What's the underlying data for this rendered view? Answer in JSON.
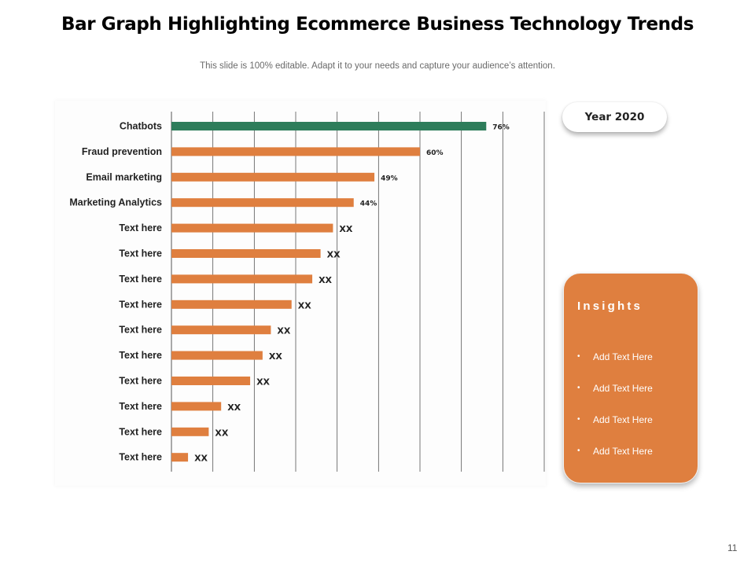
{
  "slide": {
    "title": "Bar Graph Highlighting Ecommerce Business Technology Trends",
    "subtitle": "This slide is 100% editable. Adapt it to your needs and capture your audience’s attention.",
    "page_number": "11"
  },
  "year_label": "Year 2020",
  "insights": {
    "title": "Insights",
    "items": [
      "Add Text Here",
      "Add Text Here",
      "Add Text Here",
      "Add Text Here"
    ]
  },
  "colors": {
    "highlight": "#2e7d5b",
    "bar": "#df7f3f",
    "grid": "#555555"
  },
  "chart_data": {
    "type": "bar",
    "orientation": "horizontal",
    "title": "",
    "xlabel": "",
    "ylabel": "",
    "xlim": [
      0,
      90
    ],
    "grid": true,
    "categories": [
      "Chatbots",
      "Fraud prevention",
      "Email marketing",
      "Marketing Analytics",
      "Text here",
      "Text here",
      "Text here",
      "Text here",
      "Text here",
      "Text here",
      "Text here",
      "Text here",
      "Text here",
      "Text here"
    ],
    "values": [
      76,
      60,
      49,
      44,
      39,
      36,
      34,
      29,
      24,
      22,
      19,
      12,
      9,
      4
    ],
    "data_labels": [
      "76%",
      "60%",
      "49%",
      "44%",
      "XX",
      "XX",
      "XX",
      "XX",
      "XX",
      "XX",
      "XX",
      "XX",
      "XX",
      "XX"
    ],
    "highlight_index": 0
  }
}
